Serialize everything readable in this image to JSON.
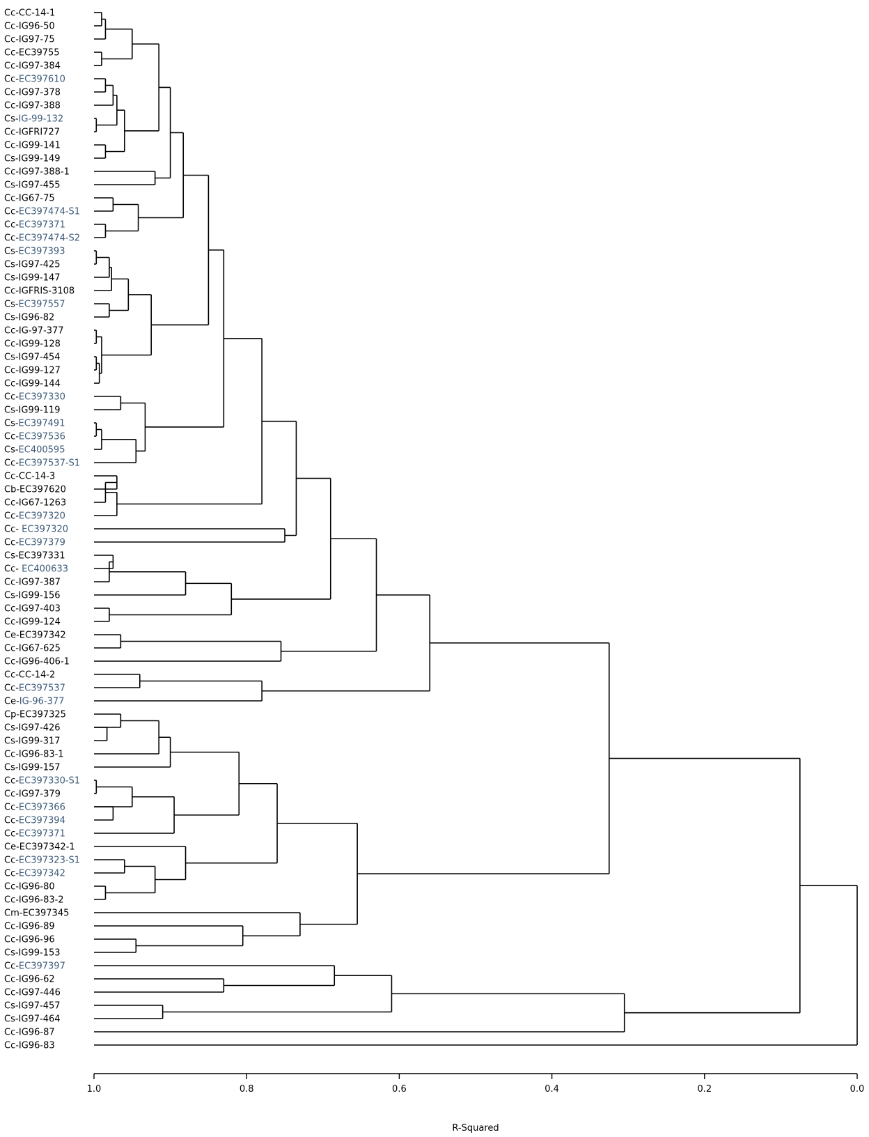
{
  "chart_data": {
    "type": "dendrogram",
    "xlabel": "R-Squared",
    "xlim": [
      1.0,
      0.0
    ],
    "ticks": [
      {
        "value": 1.0,
        "label": "1.0"
      },
      {
        "value": 0.8,
        "label": "0.8"
      },
      {
        "value": 0.6,
        "label": "0.6"
      },
      {
        "value": 0.4,
        "label": "0.4"
      },
      {
        "value": 0.2,
        "label": "0.2"
      },
      {
        "value": 0.0,
        "label": "0.0"
      }
    ],
    "leaves": [
      {
        "prefix": "Cc-",
        "rest": "CC-14-1",
        "blue": false
      },
      {
        "prefix": "Cc-",
        "rest": "IG96-50",
        "blue": false
      },
      {
        "prefix": "Cc-",
        "rest": "IG97-75",
        "blue": false
      },
      {
        "prefix": "Cc-",
        "rest": "EC39755",
        "blue": false
      },
      {
        "prefix": "Cc-",
        "rest": "IG97-384",
        "blue": false
      },
      {
        "prefix": "Cc-",
        "rest": "EC397610",
        "blue": true
      },
      {
        "prefix": "Cc-",
        "rest": "IG97-378",
        "blue": false
      },
      {
        "prefix": "Cc-",
        "rest": "IG97-388",
        "blue": false
      },
      {
        "prefix": "Cs-",
        "rest": "IG-99-132",
        "blue": true
      },
      {
        "prefix": "Cc-",
        "rest": "IGFRI727",
        "blue": false
      },
      {
        "prefix": "Cc-",
        "rest": "IG99-141",
        "blue": false
      },
      {
        "prefix": "Cs-",
        "rest": "IG99-149",
        "blue": false
      },
      {
        "prefix": "Cc-",
        "rest": "IG97-388-1",
        "blue": false
      },
      {
        "prefix": "Cs-",
        "rest": "IG97-455",
        "blue": false
      },
      {
        "prefix": "Cc-",
        "rest": "IG67-75",
        "blue": false
      },
      {
        "prefix": "Cc-",
        "rest": "EC397474-S1",
        "blue": true
      },
      {
        "prefix": "Cc-",
        "rest": "EC397371",
        "blue": true
      },
      {
        "prefix": "Cc-",
        "rest": "EC397474-S2",
        "blue": true
      },
      {
        "prefix": "Cs-",
        "rest": "EC397393",
        "blue": true
      },
      {
        "prefix": "Cs-",
        "rest": "IG97-425",
        "blue": false
      },
      {
        "prefix": "Cs-",
        "rest": "IG99-147",
        "blue": false
      },
      {
        "prefix": "Cc-",
        "rest": "IGFRIS-3108",
        "blue": false
      },
      {
        "prefix": "Cs-",
        "rest": "EC397557",
        "blue": true
      },
      {
        "prefix": "Cs-",
        "rest": "IG96-82",
        "blue": false
      },
      {
        "prefix": "Cc-",
        "rest": "IG-97-377",
        "blue": false
      },
      {
        "prefix": "Cc-",
        "rest": "IG99-128",
        "blue": false
      },
      {
        "prefix": "Cs-",
        "rest": "IG97-454",
        "blue": false
      },
      {
        "prefix": "Cc-",
        "rest": "IG99-127",
        "blue": false
      },
      {
        "prefix": "Cc-",
        "rest": "IG99-144",
        "blue": false
      },
      {
        "prefix": "Cc-",
        "rest": "EC397330",
        "blue": true
      },
      {
        "prefix": "Cs-",
        "rest": "IG99-119",
        "blue": false
      },
      {
        "prefix": "Cs-",
        "rest": "EC397491",
        "blue": true
      },
      {
        "prefix": "Cc-",
        "rest": "EC397536",
        "blue": true
      },
      {
        "prefix": "Cs-",
        "rest": "EC400595",
        "blue": true
      },
      {
        "prefix": "Cc-",
        "rest": "EC397537-S1",
        "blue": true
      },
      {
        "prefix": "Cc-",
        "rest": "CC-14-3",
        "blue": false
      },
      {
        "prefix": "Cb-",
        "rest": "EC397620",
        "blue": false
      },
      {
        "prefix": "Cc-",
        "rest": "IG67-1263",
        "blue": false
      },
      {
        "prefix": "Cc-",
        "rest": "EC397320",
        "blue": true
      },
      {
        "prefix": "Cc- ",
        "rest": "EC397320",
        "blue": true
      },
      {
        "prefix": "Cc-",
        "rest": "EC397379",
        "blue": true
      },
      {
        "prefix": "Cs-",
        "rest": "EC397331",
        "blue": false
      },
      {
        "prefix": "Cc- ",
        "rest": "EC400633",
        "blue": true
      },
      {
        "prefix": "Cc-",
        "rest": "IG97-387",
        "blue": false
      },
      {
        "prefix": "Cs-",
        "rest": "IG99-156",
        "blue": false
      },
      {
        "prefix": "Cc-",
        "rest": "IG97-403",
        "blue": false
      },
      {
        "prefix": "Cc-",
        "rest": "IG99-124",
        "blue": false
      },
      {
        "prefix": "Ce-",
        "rest": "EC397342",
        "blue": false
      },
      {
        "prefix": "Cc-",
        "rest": "IG67-625",
        "blue": false
      },
      {
        "prefix": "Cc-",
        "rest": "IG96-406-1",
        "blue": false
      },
      {
        "prefix": "Cc-",
        "rest": "CC-14-2",
        "blue": false
      },
      {
        "prefix": "Cc-",
        "rest": "EC397537",
        "blue": true
      },
      {
        "prefix": "Ce-",
        "rest": "IG-96-377",
        "blue": true
      },
      {
        "prefix": "Cp-",
        "rest": "EC397325",
        "blue": false
      },
      {
        "prefix": "Cs-",
        "rest": "IG97-426",
        "blue": false
      },
      {
        "prefix": "Cs-",
        "rest": "IG99-317",
        "blue": false
      },
      {
        "prefix": "Cc-",
        "rest": "IG96-83-1",
        "blue": false
      },
      {
        "prefix": "Cs-",
        "rest": "IG99-157",
        "blue": false
      },
      {
        "prefix": "Cc-",
        "rest": "EC397330-S1",
        "blue": true
      },
      {
        "prefix": "Cc-",
        "rest": "IG97-379",
        "blue": false
      },
      {
        "prefix": "Cc-",
        "rest": "EC397366",
        "blue": true
      },
      {
        "prefix": "Cc-",
        "rest": "EC397394",
        "blue": true
      },
      {
        "prefix": "Cc-",
        "rest": "EC397371",
        "blue": true
      },
      {
        "prefix": "Ce-",
        "rest": "EC397342-1",
        "blue": false
      },
      {
        "prefix": "Cc-",
        "rest": "EC397323-S1",
        "blue": true
      },
      {
        "prefix": "Cc-",
        "rest": "EC397342",
        "blue": true
      },
      {
        "prefix": "Cc-",
        "rest": "IG96-80",
        "blue": false
      },
      {
        "prefix": "Cc-",
        "rest": "IG96-83-2",
        "blue": false
      },
      {
        "prefix": "Cm-",
        "rest": "EC397345",
        "blue": false
      },
      {
        "prefix": "Cc-",
        "rest": "IG96-89",
        "blue": false
      },
      {
        "prefix": "Cc-",
        "rest": "IG96-96",
        "blue": false
      },
      {
        "prefix": "Cs-",
        "rest": "IG99-153",
        "blue": false
      },
      {
        "prefix": "Cc-",
        "rest": "EC397397",
        "blue": true
      },
      {
        "prefix": "Cc-",
        "rest": "IG96-62",
        "blue": false
      },
      {
        "prefix": "Cc-",
        "rest": "IG97-446",
        "blue": false
      },
      {
        "prefix": "Cs-",
        "rest": "IG97-457",
        "blue": false
      },
      {
        "prefix": "Cs-",
        "rest": "IG97-464",
        "blue": false
      },
      {
        "prefix": "Cc-",
        "rest": "IG96-87",
        "blue": false
      },
      {
        "prefix": "Cc-",
        "rest": "IG96-83",
        "blue": false
      }
    ],
    "merges": [
      {
        "a": 0,
        "b": 1,
        "h": 0.99
      },
      {
        "a": 0,
        "b": 2,
        "h": 0.985
      },
      {
        "a": 3,
        "b": 4,
        "h": 0.99
      },
      {
        "a": 0,
        "b": 3,
        "h": 0.95
      },
      {
        "a": 5,
        "b": 6,
        "h": 0.985
      },
      {
        "a": 5,
        "b": 7,
        "h": 0.975
      },
      {
        "a": 8,
        "b": 9,
        "h": 0.997
      },
      {
        "a": 5,
        "b": 8,
        "h": 0.97
      },
      {
        "a": 10,
        "b": 11,
        "h": 0.985
      },
      {
        "a": 5,
        "b": 10,
        "h": 0.96
      },
      {
        "a": 0,
        "b": 5,
        "h": 0.915
      },
      {
        "a": 12,
        "b": 13,
        "h": 0.92
      },
      {
        "a": 0,
        "b": 12,
        "h": 0.9
      },
      {
        "a": 14,
        "b": 15,
        "h": 0.975
      },
      {
        "a": 16,
        "b": 17,
        "h": 0.985
      },
      {
        "a": 14,
        "b": 16,
        "h": 0.942
      },
      {
        "a": 0,
        "b": 14,
        "h": 0.883
      },
      {
        "a": 18,
        "b": 19,
        "h": 0.997
      },
      {
        "a": 18,
        "b": 20,
        "h": 0.98
      },
      {
        "a": 18,
        "b": 21,
        "h": 0.977
      },
      {
        "a": 22,
        "b": 23,
        "h": 0.98
      },
      {
        "a": 18,
        "b": 22,
        "h": 0.955
      },
      {
        "a": 24,
        "b": 25,
        "h": 0.997
      },
      {
        "a": 26,
        "b": 27,
        "h": 0.997
      },
      {
        "a": 26,
        "b": 28,
        "h": 0.993
      },
      {
        "a": 24,
        "b": 26,
        "h": 0.99
      },
      {
        "a": 18,
        "b": 24,
        "h": 0.925
      },
      {
        "a": 0,
        "b": 18,
        "h": 0.85
      },
      {
        "a": 29,
        "b": 30,
        "h": 0.965
      },
      {
        "a": 31,
        "b": 32,
        "h": 0.997
      },
      {
        "a": 31,
        "b": 33,
        "h": 0.99
      },
      {
        "a": 31,
        "b": 34,
        "h": 0.945
      },
      {
        "a": 29,
        "b": 31,
        "h": 0.933
      },
      {
        "a": 0,
        "b": 29,
        "h": 0.83
      },
      {
        "a": 35,
        "b": 36,
        "h": 0.97
      },
      {
        "a": 35,
        "b": 37,
        "h": 0.985
      },
      {
        "a": 35,
        "b": 38,
        "h": 0.97
      },
      {
        "a": 0,
        "b": 35,
        "h": 0.78
      },
      {
        "a": 39,
        "b": 40,
        "h": 0.75
      },
      {
        "a": 0,
        "b": 39,
        "h": 0.735
      },
      {
        "a": 41,
        "b": 42,
        "h": 0.975
      },
      {
        "a": 41,
        "b": 43,
        "h": 0.98
      },
      {
        "a": 45,
        "b": 46,
        "h": 0.98
      },
      {
        "a": 41,
        "b": 44,
        "h": 0.88
      },
      {
        "a": 41,
        "b": 45,
        "h": 0.82
      },
      {
        "a": 0,
        "b": 41,
        "h": 0.69
      },
      {
        "a": 47,
        "b": 48,
        "h": 0.965
      },
      {
        "a": 47,
        "b": 49,
        "h": 0.755
      },
      {
        "a": 0,
        "b": 47,
        "h": 0.63
      },
      {
        "a": 50,
        "b": 51,
        "h": 0.94
      },
      {
        "a": 50,
        "b": 52,
        "h": 0.78
      },
      {
        "a": 0,
        "b": 50,
        "h": 0.56
      },
      {
        "a": 53,
        "b": 54,
        "h": 0.965
      },
      {
        "a": 54,
        "b": 55,
        "h": 0.983
      },
      {
        "a": 53,
        "b": 56,
        "h": 0.915
      },
      {
        "a": 53,
        "b": 57,
        "h": 0.9
      },
      {
        "a": 58,
        "b": 59,
        "h": 0.997
      },
      {
        "a": 58,
        "b": 60,
        "h": 0.95
      },
      {
        "a": 60,
        "b": 61,
        "h": 0.975
      },
      {
        "a": 58,
        "b": 62,
        "h": 0.895
      },
      {
        "a": 53,
        "b": 58,
        "h": 0.81
      },
      {
        "a": 64,
        "b": 65,
        "h": 0.96
      },
      {
        "a": 66,
        "b": 67,
        "h": 0.985
      },
      {
        "a": 64,
        "b": 66,
        "h": 0.92
      },
      {
        "a": 63,
        "b": 64,
        "h": 0.88
      },
      {
        "a": 53,
        "b": 63,
        "h": 0.76
      },
      {
        "a": 70,
        "b": 71,
        "h": 0.945
      },
      {
        "a": 69,
        "b": 70,
        "h": 0.805
      },
      {
        "a": 68,
        "b": 69,
        "h": 0.73
      },
      {
        "a": 53,
        "b": 68,
        "h": 0.655
      },
      {
        "a": 0,
        "b": 53,
        "h": 0.325
      },
      {
        "a": 73,
        "b": 74,
        "h": 0.83
      },
      {
        "a": 72,
        "b": 73,
        "h": 0.685
      },
      {
        "a": 75,
        "b": 76,
        "h": 0.91
      },
      {
        "a": 72,
        "b": 75,
        "h": 0.61
      },
      {
        "a": 72,
        "b": 77,
        "h": 0.305
      },
      {
        "a": 0,
        "b": 72,
        "h": 0.075
      },
      {
        "a": 0,
        "b": 78,
        "h": 0.0
      }
    ]
  }
}
